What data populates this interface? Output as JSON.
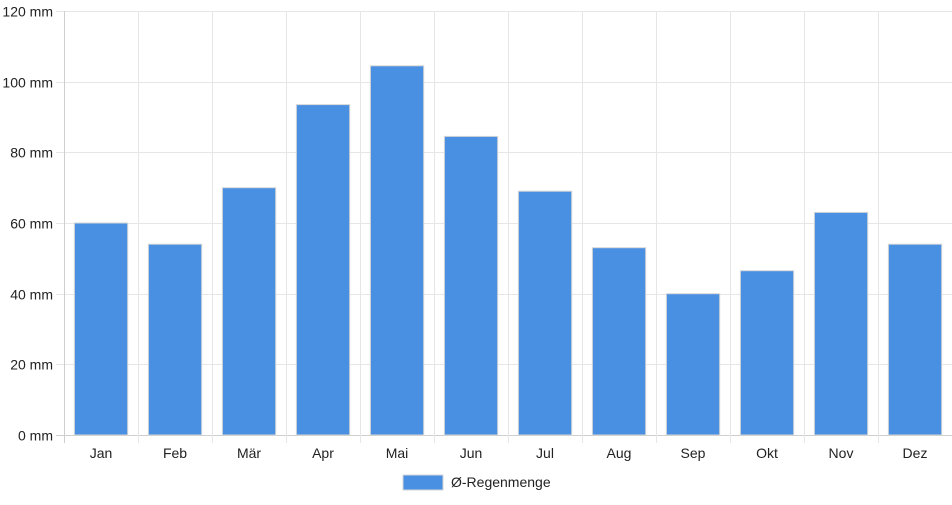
{
  "colors": {
    "bar_fill": "#4a90e2",
    "bar_border": "#d6d6d6",
    "grid": "#e6e6e6",
    "text": "#222222"
  },
  "chart_data": {
    "type": "bar",
    "categories": [
      "Jan",
      "Feb",
      "Mär",
      "Apr",
      "Mai",
      "Jun",
      "Jul",
      "Aug",
      "Sep",
      "Okt",
      "Nov",
      "Dez"
    ],
    "series": [
      {
        "name": "Ø-Regenmenge",
        "values": [
          60,
          54,
          70,
          93.5,
          104.5,
          84.5,
          69,
          53,
          40,
          46.5,
          63,
          54
        ]
      }
    ],
    "ylim": [
      0,
      120
    ],
    "yticks": [
      0,
      20,
      40,
      60,
      80,
      100,
      120
    ],
    "ytick_labels": [
      "0 mm",
      "20 mm",
      "40 mm",
      "60 mm",
      "80 mm",
      "100 mm",
      "120 mm"
    ],
    "grid": true,
    "legend_position": "bottom-center"
  }
}
